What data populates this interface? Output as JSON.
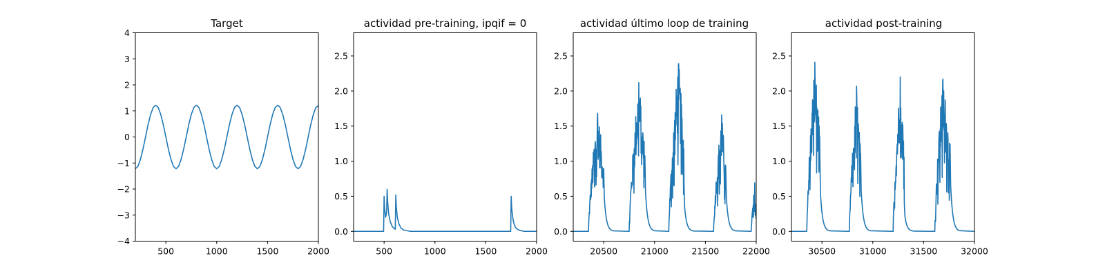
{
  "colors": {
    "series": "#1f77b4",
    "axes": "#000000",
    "background": "#ffffff"
  },
  "chart_data": [
    {
      "type": "line",
      "title": "Target",
      "xlabel": "",
      "ylabel": "",
      "xlim": [
        200,
        2000
      ],
      "ylim": [
        -4,
        4
      ],
      "xticks": [
        500,
        1000,
        1500,
        2000
      ],
      "yticks": [
        -4,
        -3,
        -2,
        -1,
        0,
        1,
        2,
        3,
        4
      ],
      "grid": false,
      "series": [
        {
          "description": "sinusoid, amplitude ~1.22, period ~400",
          "x": [
            200,
            225,
            250,
            275,
            300,
            325,
            350,
            375,
            400,
            425,
            450,
            475,
            500,
            525,
            550,
            575,
            600,
            625,
            650,
            675,
            700,
            725,
            750,
            775,
            800,
            825,
            850,
            875,
            900,
            925,
            950,
            975,
            1000,
            1025,
            1050,
            1075,
            1100,
            1125,
            1150,
            1175,
            1200,
            1225,
            1250,
            1275,
            1300,
            1325,
            1350,
            1375,
            1400,
            1425,
            1450,
            1475,
            1500,
            1525,
            1550,
            1575,
            1600,
            1625,
            1650,
            1675,
            1700,
            1725,
            1750,
            1775,
            1800,
            1825,
            1850,
            1875,
            1900,
            1925,
            1950,
            1975,
            2000
          ],
          "y": [
            -1.22,
            -1.13,
            -0.86,
            -0.47,
            0.0,
            0.47,
            0.86,
            1.13,
            1.22,
            1.13,
            0.86,
            0.47,
            0.0,
            -0.47,
            -0.86,
            -1.13,
            -1.22,
            -1.13,
            -0.86,
            -0.47,
            0.0,
            0.47,
            0.86,
            1.13,
            1.22,
            1.13,
            0.86,
            0.47,
            0.0,
            -0.47,
            -0.86,
            -1.13,
            -1.22,
            -1.13,
            -0.86,
            -0.47,
            0.0,
            0.47,
            0.86,
            1.13,
            1.22,
            1.13,
            0.86,
            0.47,
            0.0,
            -0.47,
            -0.86,
            -1.13,
            -1.22,
            -1.13,
            -0.86,
            -0.47,
            0.0,
            0.47,
            0.86,
            1.13,
            1.22,
            1.13,
            0.86,
            0.47,
            0.0,
            -0.47,
            -0.86,
            -1.13,
            -1.22,
            -1.13,
            -0.86,
            -0.47,
            0.0,
            0.47,
            0.86,
            1.13,
            1.2
          ]
        }
      ]
    },
    {
      "type": "line",
      "title": "actividad pre-training, ipqif = 0",
      "xlabel": "",
      "ylabel": "",
      "xlim": [
        200,
        2000
      ],
      "ylim": [
        -0.14,
        2.83
      ],
      "xticks": [
        500,
        1000,
        1500,
        2000
      ],
      "yticks": [
        0.0,
        0.5,
        1.0,
        1.5,
        2.0,
        2.5
      ],
      "ytick_labels": [
        "0.0",
        "0.5",
        "1.0",
        "1.5",
        "2.0",
        "2.5"
      ],
      "grid": false,
      "series": [
        {
          "x": [
            200,
            495,
            500,
            505,
            515,
            525,
            530,
            535,
            545,
            560,
            580,
            600,
            610,
            615,
            620,
            630,
            645,
            665,
            690,
            720,
            760,
            1745,
            1750,
            1755,
            1765,
            1775,
            1790,
            1810,
            1840,
            1880,
            2000
          ],
          "y": [
            0,
            0,
            0.5,
            0.33,
            0.2,
            0.28,
            0.6,
            0.42,
            0.25,
            0.14,
            0.07,
            0.04,
            0.03,
            0.52,
            0.35,
            0.2,
            0.11,
            0.05,
            0.02,
            0.01,
            0,
            0,
            0.5,
            0.33,
            0.2,
            0.12,
            0.06,
            0.03,
            0.01,
            0,
            0
          ]
        }
      ]
    },
    {
      "type": "line",
      "title": "actividad último loop de training",
      "xlabel": "",
      "ylabel": "",
      "xlim": [
        20200,
        22000
      ],
      "ylim": [
        -0.14,
        2.83
      ],
      "xticks": [
        20500,
        21000,
        21500,
        22000
      ],
      "yticks": [
        0.0,
        0.5,
        1.0,
        1.5,
        2.0,
        2.5
      ],
      "ytick_labels": [
        "0.0",
        "0.5",
        "1.0",
        "1.5",
        "2.0",
        "2.5"
      ],
      "grid": false,
      "bursts": [
        {
          "start": 20350,
          "peak": 20440,
          "end": 20500,
          "amp": 1.62,
          "max": 1.68
        },
        {
          "start": 20750,
          "peak": 20845,
          "end": 20905,
          "amp": 2.0,
          "max": 2.12
        },
        {
          "start": 21140,
          "peak": 21235,
          "end": 21290,
          "amp": 2.25,
          "max": 2.39
        },
        {
          "start": 21580,
          "peak": 21660,
          "end": 21700,
          "amp": 1.55,
          "max": 1.66
        },
        {
          "start": 21950,
          "peak": 21985,
          "end": 22000,
          "amp": 0.6,
          "max": 0.69
        }
      ]
    },
    {
      "type": "line",
      "title": "actividad post-training",
      "xlabel": "",
      "ylabel": "",
      "xlim": [
        30200,
        32000
      ],
      "ylim": [
        -0.14,
        2.83
      ],
      "xticks": [
        30500,
        31000,
        31500,
        32000
      ],
      "yticks": [
        0.0,
        0.5,
        1.0,
        1.5,
        2.0,
        2.5
      ],
      "ytick_labels": [
        "0.0",
        "0.5",
        "1.0",
        "1.5",
        "2.0",
        "2.5"
      ],
      "grid": false,
      "bursts": [
        {
          "start": 30350,
          "peak": 30430,
          "end": 30480,
          "amp": 2.25,
          "max": 2.41
        },
        {
          "start": 30770,
          "peak": 30840,
          "end": 30880,
          "amp": 1.9,
          "max": 2.07
        },
        {
          "start": 31200,
          "peak": 31270,
          "end": 31310,
          "amp": 2.05,
          "max": 2.2
        },
        {
          "start": 31610,
          "peak": 31690,
          "end": 31760,
          "amp": 2.05,
          "max": 2.17
        }
      ]
    }
  ]
}
